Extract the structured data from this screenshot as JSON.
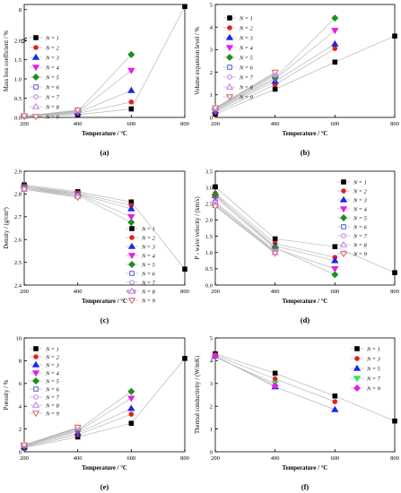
{
  "chart_data": [
    {
      "type": "line",
      "panel_label": "(a)",
      "xlabel": "Temperature / °C",
      "ylabel": "Mass loss coefficient / %",
      "x_ticks": [
        "200",
        "400",
        "600",
        "800"
      ],
      "y_ticks": [
        "0.0",
        "0.5",
        "1.0",
        "1.5",
        "2.0",
        "8"
      ],
      "axis_break": true,
      "series": [
        {
          "name": "N = 1",
          "marker": "square-filled",
          "color": "#000000",
          "x": [
            200,
            400,
            600,
            800
          ],
          "y": [
            0.03,
            0.07,
            0.22,
            8.6
          ]
        },
        {
          "name": "N = 2",
          "marker": "circle-filled",
          "color": "#e8201c",
          "x": [
            200,
            400,
            600
          ],
          "y": [
            0.03,
            0.1,
            0.4
          ]
        },
        {
          "name": "N = 3",
          "marker": "triangle-up-filled",
          "color": "#1a28e8",
          "x": [
            200,
            400,
            600
          ],
          "y": [
            0.03,
            0.12,
            0.7
          ]
        },
        {
          "name": "N = 4",
          "marker": "triangle-down-filled",
          "color": "#e81ee8",
          "x": [
            200,
            400,
            600
          ],
          "y": [
            0.03,
            0.13,
            1.22
          ]
        },
        {
          "name": "N = 5",
          "marker": "diamond-filled",
          "color": "#1e8f1e",
          "x": [
            200,
            400,
            600
          ],
          "y": [
            0.03,
            0.15,
            1.63
          ]
        },
        {
          "name": "N = 6",
          "marker": "square-open",
          "color": "#5a5ad2",
          "x": [
            200,
            400
          ],
          "y": [
            0.03,
            0.16
          ]
        },
        {
          "name": "N = 7",
          "marker": "circle-open",
          "color": "#c878e6",
          "x": [
            200,
            400
          ],
          "y": [
            0.03,
            0.17
          ]
        },
        {
          "name": "N = 8",
          "marker": "triangle-up-open",
          "color": "#c878e6",
          "x": [
            200,
            400
          ],
          "y": [
            0.03,
            0.18
          ]
        },
        {
          "name": "N = 9",
          "marker": "triangle-down-open",
          "color": "#d26464",
          "x": [
            200,
            400
          ],
          "y": [
            0.04,
            0.19
          ]
        }
      ]
    },
    {
      "type": "line",
      "panel_label": "(b)",
      "xlabel": "Temperature / °C",
      "ylabel": "Volume expansion level / %",
      "x_ticks": [
        "200",
        "400",
        "600",
        "800"
      ],
      "y_ticks": [
        "0",
        "1",
        "2",
        "3",
        "4",
        "5"
      ],
      "series": [
        {
          "name": "N = 1",
          "marker": "square-filled",
          "color": "#000000",
          "x": [
            200,
            400,
            600,
            800
          ],
          "y": [
            0.15,
            1.25,
            2.45,
            3.6
          ]
        },
        {
          "name": "N = 2",
          "marker": "circle-filled",
          "color": "#e8201c",
          "x": [
            200,
            400,
            600
          ],
          "y": [
            0.22,
            1.45,
            3.05
          ]
        },
        {
          "name": "N = 3",
          "marker": "triangle-up-filled",
          "color": "#1a28e8",
          "x": [
            200,
            400,
            600
          ],
          "y": [
            0.28,
            1.6,
            3.25
          ]
        },
        {
          "name": "N = 4",
          "marker": "triangle-down-filled",
          "color": "#e81ee8",
          "x": [
            200,
            400,
            600
          ],
          "y": [
            0.3,
            1.7,
            3.85
          ]
        },
        {
          "name": "N = 5",
          "marker": "diamond-filled",
          "color": "#1e8f1e",
          "x": [
            200,
            400,
            600
          ],
          "y": [
            0.35,
            1.75,
            4.4
          ]
        },
        {
          "name": "N = 6",
          "marker": "square-open",
          "color": "#5a5ad2",
          "x": [
            200,
            400
          ],
          "y": [
            0.35,
            1.85
          ]
        },
        {
          "name": "N = 7",
          "marker": "circle-open",
          "color": "#c878e6",
          "x": [
            200,
            400
          ],
          "y": [
            0.38,
            1.9
          ]
        },
        {
          "name": "N = 8",
          "marker": "triangle-up-open",
          "color": "#c878e6",
          "x": [
            200,
            400
          ],
          "y": [
            0.4,
            1.95
          ]
        },
        {
          "name": "N = 9",
          "marker": "triangle-down-open",
          "color": "#d26464",
          "x": [
            200,
            400
          ],
          "y": [
            0.42,
            2.0
          ]
        }
      ]
    },
    {
      "type": "line",
      "panel_label": "(c)",
      "xlabel": "Temperature / °C",
      "ylabel": "Density / (g/cm³)",
      "x_ticks": [
        "200",
        "400",
        "600",
        "800"
      ],
      "y_ticks": [
        "2.4",
        "2.5",
        "2.6",
        "2.7",
        "2.8",
        "2.9"
      ],
      "series": [
        {
          "name": "N = 1",
          "marker": "square-filled",
          "color": "#000000",
          "x": [
            200,
            400,
            600,
            800
          ],
          "y": [
            2.84,
            2.81,
            2.765,
            2.47
          ]
        },
        {
          "name": "N = 2",
          "marker": "circle-filled",
          "color": "#e8201c",
          "x": [
            200,
            400,
            600
          ],
          "y": [
            2.835,
            2.805,
            2.75
          ]
        },
        {
          "name": "N = 3",
          "marker": "triangle-up-filled",
          "color": "#1a28e8",
          "x": [
            200,
            400,
            600
          ],
          "y": [
            2.835,
            2.8,
            2.735
          ]
        },
        {
          "name": "N = 4",
          "marker": "triangle-down-filled",
          "color": "#e81ee8",
          "x": [
            200,
            400,
            600
          ],
          "y": [
            2.83,
            2.8,
            2.7
          ]
        },
        {
          "name": "N = 5",
          "marker": "diamond-filled",
          "color": "#1e8f1e",
          "x": [
            200,
            400,
            600
          ],
          "y": [
            2.83,
            2.795,
            2.675
          ]
        },
        {
          "name": "N = 6",
          "marker": "square-open",
          "color": "#5a5ad2",
          "x": [
            200,
            400
          ],
          "y": [
            2.825,
            2.795
          ]
        },
        {
          "name": "N = 7",
          "marker": "circle-open",
          "color": "#c878e6",
          "x": [
            200,
            400
          ],
          "y": [
            2.825,
            2.79
          ]
        },
        {
          "name": "N = 8",
          "marker": "triangle-up-open",
          "color": "#c878e6",
          "x": [
            200,
            400
          ],
          "y": [
            2.82,
            2.79
          ]
        },
        {
          "name": "N = 9",
          "marker": "triangle-down-open",
          "color": "#d26464",
          "x": [
            200,
            400
          ],
          "y": [
            2.82,
            2.785
          ]
        }
      ]
    },
    {
      "type": "line",
      "panel_label": "(d)",
      "xlabel": "Temperature / °C",
      "ylabel": "P - wave velocity / (km/s)",
      "x_ticks": [
        "200",
        "400",
        "600",
        "800"
      ],
      "y_ticks": [
        "0.0",
        "0.5",
        "1.0",
        "1.5",
        "2.0",
        "2.5",
        "3.0",
        "3.5"
      ],
      "series": [
        {
          "name": "N = 1",
          "marker": "square-filled",
          "color": "#000000",
          "x": [
            200,
            400,
            600,
            800
          ],
          "y": [
            3.02,
            1.42,
            1.18,
            0.38
          ]
        },
        {
          "name": "N = 2",
          "marker": "circle-filled",
          "color": "#e8201c",
          "x": [
            200,
            400,
            600
          ],
          "y": [
            2.82,
            1.28,
            0.85
          ]
        },
        {
          "name": "N = 3",
          "marker": "triangle-up-filled",
          "color": "#1a28e8",
          "x": [
            200,
            400,
            600
          ],
          "y": [
            2.75,
            1.2,
            0.75
          ]
        },
        {
          "name": "N = 4",
          "marker": "triangle-down-filled",
          "color": "#e81ee8",
          "x": [
            200,
            400,
            600
          ],
          "y": [
            2.7,
            1.12,
            0.5
          ]
        },
        {
          "name": "N = 5",
          "marker": "diamond-filled",
          "color": "#1e8f1e",
          "x": [
            200,
            400,
            600
          ],
          "y": [
            2.78,
            1.15,
            0.32
          ]
        },
        {
          "name": "N = 6",
          "marker": "square-open",
          "color": "#5a5ad2",
          "x": [
            200,
            400
          ],
          "y": [
            2.55,
            1.05
          ]
        },
        {
          "name": "N = 7",
          "marker": "circle-open",
          "color": "#c878e6",
          "x": [
            200,
            400
          ],
          "y": [
            2.5,
            1.02
          ]
        },
        {
          "name": "N = 8",
          "marker": "triangle-up-open",
          "color": "#c878e6",
          "x": [
            200,
            400
          ],
          "y": [
            2.45,
            1.0
          ]
        },
        {
          "name": "N = 9",
          "marker": "triangle-down-open",
          "color": "#d26464",
          "x": [
            200,
            400
          ],
          "y": [
            2.42,
            0.98
          ]
        }
      ]
    },
    {
      "type": "line",
      "panel_label": "(e)",
      "xlabel": "Temperature / °C",
      "ylabel": "Porosity / %",
      "x_ticks": [
        "200",
        "400",
        "600",
        "800"
      ],
      "y_ticks": [
        "0",
        "2",
        "4",
        "6",
        "8",
        "10"
      ],
      "series": [
        {
          "name": "N = 1",
          "marker": "square-filled",
          "color": "#000000",
          "x": [
            200,
            400,
            600,
            800
          ],
          "y": [
            0.35,
            1.3,
            2.5,
            8.2
          ]
        },
        {
          "name": "N = 2",
          "marker": "circle-filled",
          "color": "#e8201c",
          "x": [
            200,
            400,
            600
          ],
          "y": [
            0.4,
            1.5,
            3.3
          ]
        },
        {
          "name": "N = 3",
          "marker": "triangle-up-filled",
          "color": "#1a28e8",
          "x": [
            200,
            400,
            600
          ],
          "y": [
            0.45,
            1.65,
            3.8
          ]
        },
        {
          "name": "N = 4",
          "marker": "triangle-down-filled",
          "color": "#e81ee8",
          "x": [
            200,
            400,
            600
          ],
          "y": [
            0.5,
            1.8,
            4.7
          ]
        },
        {
          "name": "N = 5",
          "marker": "diamond-filled",
          "color": "#1e8f1e",
          "x": [
            200,
            400,
            600
          ],
          "y": [
            0.5,
            1.9,
            5.3
          ]
        },
        {
          "name": "N = 6",
          "marker": "square-open",
          "color": "#5a5ad2",
          "x": [
            200,
            400
          ],
          "y": [
            0.55,
            2.0
          ]
        },
        {
          "name": "N = 7",
          "marker": "circle-open",
          "color": "#c878e6",
          "x": [
            200,
            400
          ],
          "y": [
            0.55,
            2.05
          ]
        },
        {
          "name": "N = 8",
          "marker": "triangle-up-open",
          "color": "#c878e6",
          "x": [
            200,
            400
          ],
          "y": [
            0.6,
            2.1
          ]
        },
        {
          "name": "N = 9",
          "marker": "triangle-down-open",
          "color": "#d26464",
          "x": [
            200,
            400
          ],
          "y": [
            0.6,
            2.15
          ]
        }
      ]
    },
    {
      "type": "line",
      "panel_label": "(f)",
      "xlabel": "Temperature / °C",
      "ylabel": "Thermal conductivity / (W/mK)",
      "x_ticks": [
        "200",
        "400",
        "600",
        "800"
      ],
      "y_ticks": [
        "0",
        "1",
        "2",
        "3",
        "4",
        "5"
      ],
      "series": [
        {
          "name": "N = 1",
          "marker": "square-filled",
          "color": "#000000",
          "x": [
            200,
            400,
            600,
            800
          ],
          "y": [
            4.3,
            3.45,
            2.45,
            1.35
          ]
        },
        {
          "name": "N = 3",
          "marker": "circle-filled",
          "color": "#e8201c",
          "x": [
            200,
            400,
            600
          ],
          "y": [
            4.25,
            3.2,
            2.2
          ]
        },
        {
          "name": "N = 5",
          "marker": "triangle-up-filled",
          "color": "#1a28e8",
          "x": [
            200,
            400,
            600
          ],
          "y": [
            4.2,
            2.85,
            1.85
          ]
        },
        {
          "name": "N = 7",
          "marker": "triangle-down-filled",
          "color": "#26e86a",
          "x": [
            200,
            400
          ],
          "y": [
            4.15,
            3.0
          ]
        },
        {
          "name": "N = 9",
          "marker": "diamond-filled",
          "color": "#e81ee8",
          "x": [
            200,
            400
          ],
          "y": [
            4.2,
            2.9
          ]
        }
      ]
    }
  ]
}
